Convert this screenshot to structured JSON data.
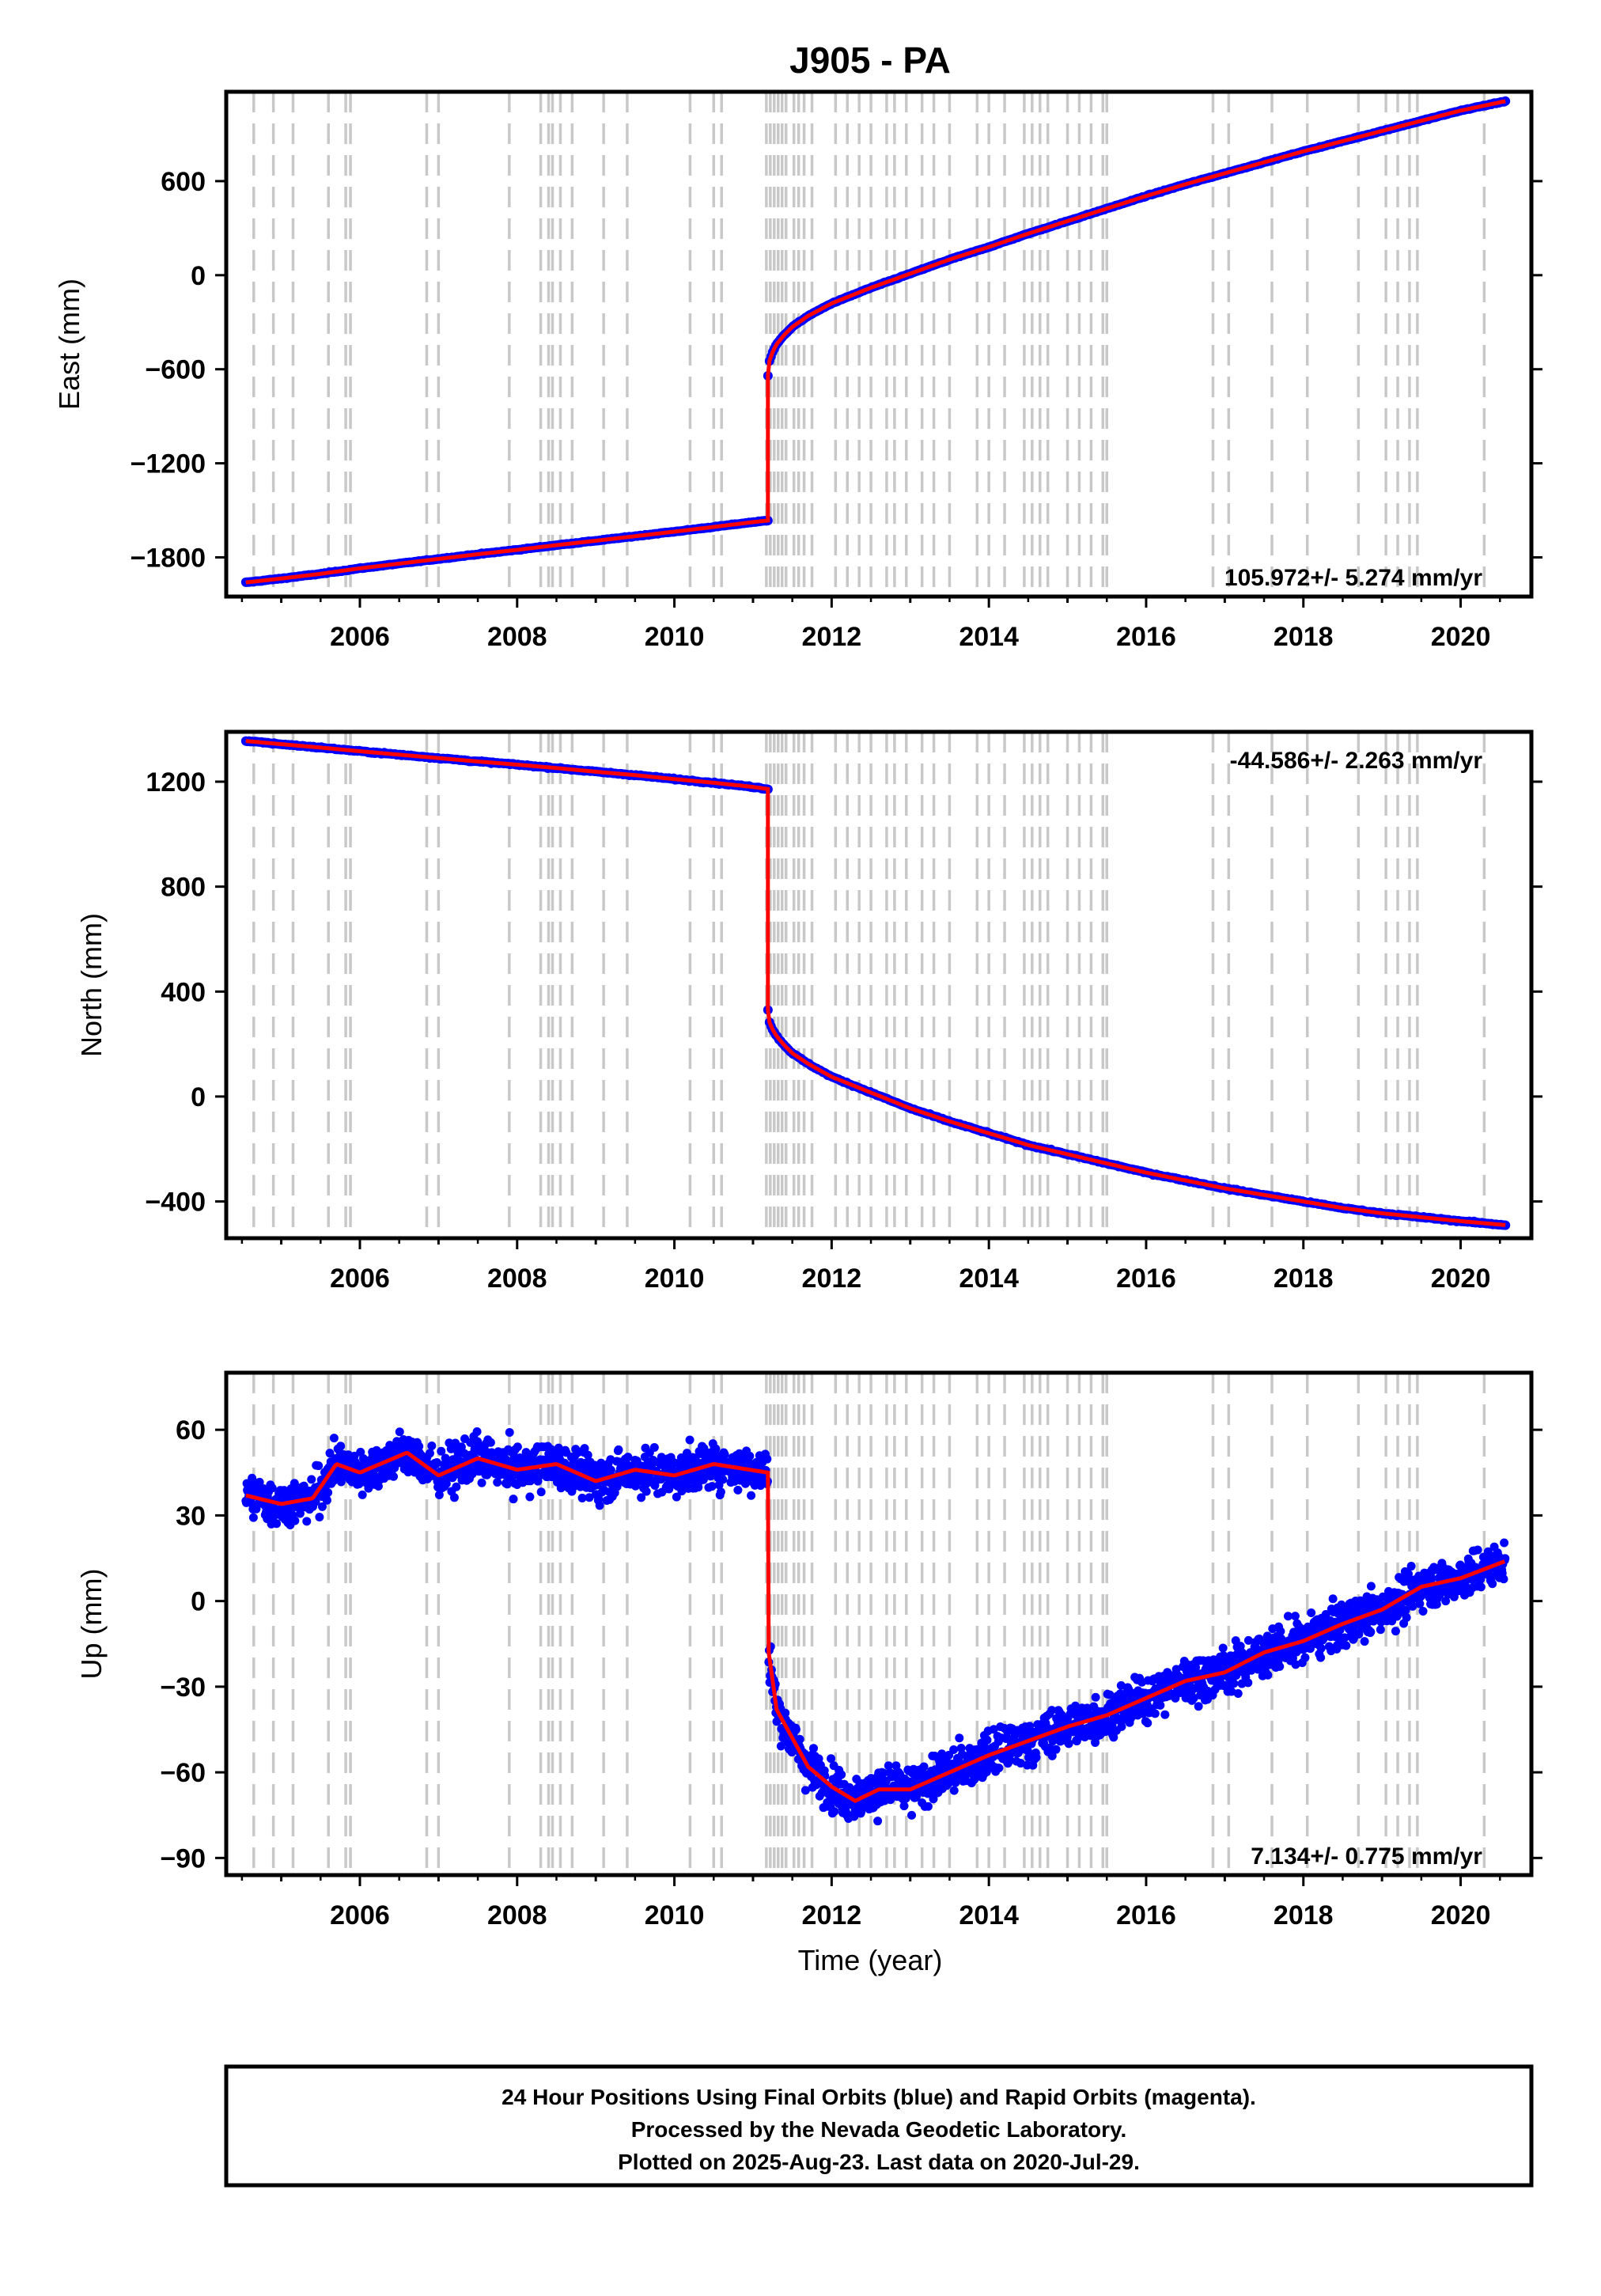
{
  "title": "J905 - PA",
  "xlabel": "Time (year)",
  "footer": {
    "line1": "24 Hour Positions Using Final Orbits (blue) and Rapid Orbits (magenta).",
    "line2": "Processed by the Nevada Geodetic Laboratory.",
    "line3": "Plotted on 2025-Aug-23. Last data on 2020-Jul-29."
  },
  "colors": {
    "points": "#0000ff",
    "model": "#ff0000",
    "events": "#c8c8c8",
    "frame": "#000000"
  },
  "chart_data": [
    {
      "type": "scatter",
      "ylabel": "East (mm)",
      "rate": "105.972+/- 5.274 mm/yr",
      "rate_position": "bottom-right",
      "xlim": [
        2004.3,
        2020.9
      ],
      "ylim": [
        -2050,
        1170
      ],
      "xticks": [
        2006,
        2008,
        2010,
        2012,
        2014,
        2016,
        2018,
        2020
      ],
      "yticks": [
        600,
        0,
        -600,
        -1200,
        -1800
      ],
      "series": [
        {
          "x": [
            2004.55,
            2005.0,
            2005.5,
            2006.0,
            2006.5,
            2007.0,
            2007.5,
            2008.0,
            2008.5,
            2009.0,
            2009.5,
            2010.0,
            2010.5,
            2011.0,
            2011.19
          ],
          "y": [
            -1960,
            -1935,
            -1905,
            -1870,
            -1840,
            -1810,
            -1780,
            -1752,
            -1722,
            -1694,
            -1665,
            -1636,
            -1606,
            -1575,
            -1565
          ]
        },
        {
          "x": [
            2011.19,
            2011.2,
            2011.25,
            2011.3,
            2011.4,
            2011.5,
            2011.7,
            2012.0,
            2012.5,
            2013.0,
            2013.5,
            2014.0,
            2014.5,
            2015.0,
            2015.5,
            2016.0,
            2016.5,
            2017.0,
            2017.5,
            2018.0,
            2018.5,
            2019.0,
            2019.5,
            2020.0,
            2020.57
          ],
          "y": [
            -640,
            -560,
            -490,
            -440,
            -380,
            -330,
            -260,
            -180,
            -80,
            10,
            100,
            180,
            265,
            345,
            425,
            505,
            580,
            650,
            720,
            790,
            855,
            920,
            985,
            1050,
            1110
          ]
        }
      ]
    },
    {
      "type": "scatter",
      "ylabel": "North (mm)",
      "rate": "-44.586+/- 2.263 mm/yr",
      "rate_position": "top-right",
      "xlim": [
        2004.3,
        2020.9
      ],
      "ylim": [
        -540,
        1390
      ],
      "xticks": [
        2006,
        2008,
        2010,
        2012,
        2014,
        2016,
        2018,
        2020
      ],
      "yticks": [
        1200,
        800,
        400,
        0,
        -400
      ],
      "series": [
        {
          "x": [
            2004.55,
            2005.0,
            2005.5,
            2006.0,
            2006.5,
            2007.0,
            2007.5,
            2008.0,
            2008.5,
            2009.0,
            2009.5,
            2010.0,
            2010.5,
            2011.0,
            2011.19
          ],
          "y": [
            1355,
            1343,
            1330,
            1316,
            1303,
            1290,
            1277,
            1265,
            1252,
            1238,
            1225,
            1210,
            1196,
            1180,
            1172
          ]
        },
        {
          "x": [
            2011.19,
            2011.2,
            2011.25,
            2011.3,
            2011.4,
            2011.5,
            2011.7,
            2012.0,
            2012.5,
            2013.0,
            2013.5,
            2014.0,
            2014.5,
            2015.0,
            2015.5,
            2016.0,
            2016.5,
            2017.0,
            2017.5,
            2018.0,
            2018.5,
            2019.0,
            2019.5,
            2020.0,
            2020.57
          ],
          "y": [
            330,
            290,
            255,
            230,
            195,
            165,
            125,
            75,
            15,
            -45,
            -95,
            -140,
            -185,
            -220,
            -255,
            -290,
            -320,
            -350,
            -375,
            -400,
            -425,
            -445,
            -460,
            -475,
            -490
          ]
        }
      ]
    },
    {
      "type": "scatter",
      "ylabel": "Up (mm)",
      "rate": "7.134+/- 0.775 mm/yr",
      "rate_position": "bottom-right",
      "xlim": [
        2004.3,
        2020.9
      ],
      "ylim": [
        -96,
        80
      ],
      "xticks": [
        2006,
        2008,
        2010,
        2012,
        2014,
        2016,
        2018,
        2020
      ],
      "yticks": [
        60,
        30,
        0,
        -30,
        -60,
        -90
      ],
      "series": [
        {
          "x": [
            2004.55,
            2005.0,
            2005.4,
            2005.7,
            2006.0,
            2006.6,
            2007.0,
            2007.5,
            2008.0,
            2008.5,
            2009.0,
            2009.5,
            2010.0,
            2010.5,
            2011.19
          ],
          "y": [
            37,
            34,
            36,
            48,
            45,
            52,
            44,
            50,
            46,
            48,
            42,
            46,
            44,
            48,
            45
          ]
        },
        {
          "x": [
            2011.2,
            2011.3,
            2011.5,
            2011.7,
            2012.0,
            2012.3,
            2012.6,
            2013.0,
            2013.5,
            2014.0,
            2014.5,
            2015.0,
            2015.5,
            2016.0,
            2016.5,
            2017.0,
            2017.5,
            2018.0,
            2018.5,
            2019.0,
            2019.5,
            2020.0,
            2020.57
          ],
          "y": [
            -18,
            -38,
            -48,
            -58,
            -65,
            -70,
            -66,
            -66,
            -60,
            -54,
            -49,
            -44,
            -40,
            -34,
            -28,
            -25,
            -18,
            -14,
            -8,
            -3,
            5,
            8,
            14
          ]
        }
      ]
    }
  ],
  "event_lines": [
    2004.65,
    2004.9,
    2005.15,
    2005.6,
    2005.82,
    2005.88,
    2006.85,
    2007.0,
    2007.9,
    2008.3,
    2008.4,
    2008.45,
    2008.55,
    2008.7,
    2009.1,
    2009.4,
    2010.2,
    2010.5,
    2010.6,
    2011.17,
    2011.22,
    2011.27,
    2011.32,
    2011.37,
    2011.42,
    2011.52,
    2011.58,
    2011.65,
    2011.75,
    2012.05,
    2012.2,
    2012.35,
    2012.5,
    2012.7,
    2012.8,
    2012.95,
    2013.15,
    2013.3,
    2013.5,
    2013.85,
    2014.0,
    2014.2,
    2014.45,
    2014.55,
    2014.65,
    2014.75,
    2015.0,
    2015.15,
    2015.3,
    2015.45,
    2015.5,
    2016.85,
    2017.05,
    2017.6,
    2018.05,
    2018.7,
    2019.05,
    2019.2,
    2019.35,
    2019.45,
    2020.3
  ]
}
